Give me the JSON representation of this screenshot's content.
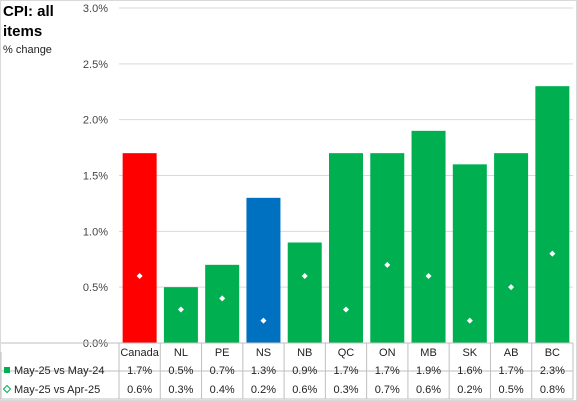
{
  "chart_data": {
    "type": "bar",
    "title": "CPI: all items",
    "ylabel": "% change",
    "ylim": [
      0,
      3.0
    ],
    "yticks": [
      "0.0%",
      "0.5%",
      "1.0%",
      "1.5%",
      "2.0%",
      "2.5%",
      "3.0%"
    ],
    "ytick_values": [
      0,
      0.5,
      1.0,
      1.5,
      2.0,
      2.5,
      3.0
    ],
    "categories": [
      "Canada",
      "NL",
      "PE",
      "NS",
      "NB",
      "QC",
      "ON",
      "MB",
      "SK",
      "AB",
      "BC"
    ],
    "series": [
      {
        "name": "May-25 vs May-24",
        "marker": "bar",
        "values": [
          1.7,
          0.5,
          0.7,
          1.3,
          0.9,
          1.7,
          1.7,
          1.9,
          1.6,
          1.7,
          2.3
        ],
        "labels": [
          "1.7%",
          "0.5%",
          "0.7%",
          "1.3%",
          "0.9%",
          "1.7%",
          "1.7%",
          "1.9%",
          "1.6%",
          "1.7%",
          "2.3%"
        ]
      },
      {
        "name": "May-25 vs Apr-25",
        "marker": "diamond",
        "values": [
          0.6,
          0.3,
          0.4,
          0.2,
          0.6,
          0.3,
          0.7,
          0.6,
          0.2,
          0.5,
          0.8
        ],
        "labels": [
          "0.6%",
          "0.3%",
          "0.4%",
          "0.2%",
          "0.6%",
          "0.3%",
          "0.7%",
          "0.6%",
          "0.2%",
          "0.5%",
          "0.8%"
        ]
      }
    ],
    "bar_colors": [
      "#ff0000",
      "#00b050",
      "#00b050",
      "#0070c0",
      "#00b050",
      "#00b050",
      "#00b050",
      "#00b050",
      "#00b050",
      "#00b050",
      "#00b050"
    ],
    "marker_color": "#ffffff",
    "legend_colors": [
      "#00b050",
      "#ffffff"
    ],
    "grid": true,
    "legend": "data-table"
  }
}
